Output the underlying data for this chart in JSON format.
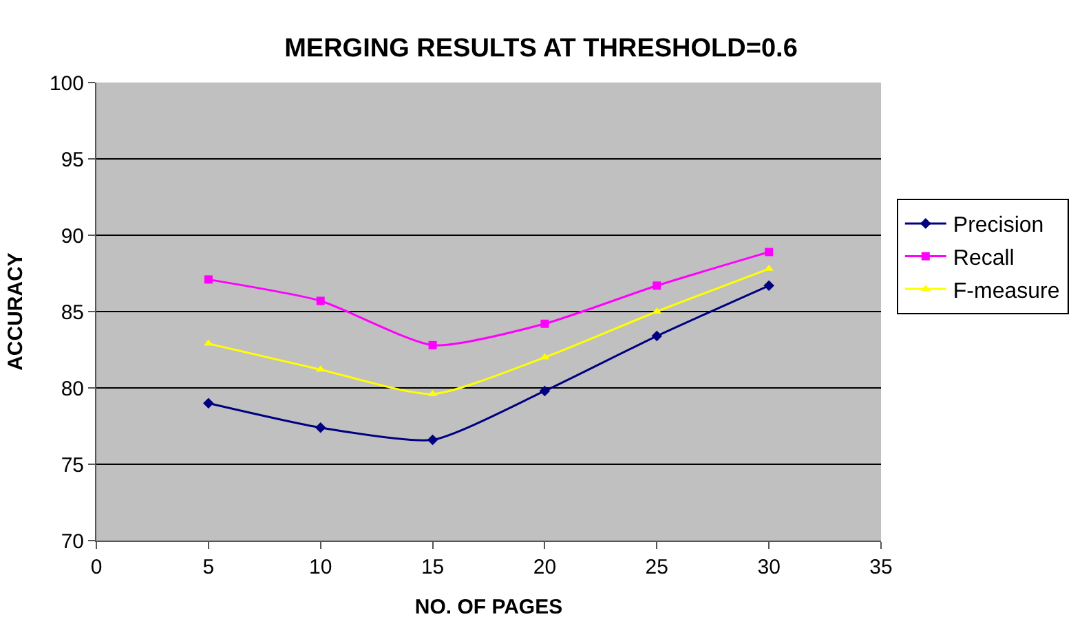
{
  "chart_data": {
    "type": "line",
    "title": "MERGING RESULTS AT THRESHOLD=0.6",
    "xlabel": "NO. OF PAGES",
    "ylabel": "ACCURACY",
    "x": [
      5,
      10,
      15,
      20,
      25,
      30
    ],
    "xlim": [
      0,
      35
    ],
    "xticks": [
      0,
      5,
      10,
      15,
      20,
      25,
      30,
      35
    ],
    "ylim": [
      70,
      100
    ],
    "yticks": [
      70,
      75,
      80,
      85,
      90,
      95,
      100
    ],
    "grid": "y",
    "legend": "right",
    "series": [
      {
        "name": "Precision",
        "color": "#000080",
        "marker": "diamond",
        "values": [
          79.0,
          77.4,
          76.6,
          79.8,
          83.4,
          86.7
        ]
      },
      {
        "name": "Recall",
        "color": "#ff00ff",
        "marker": "square",
        "values": [
          87.1,
          85.7,
          82.8,
          84.2,
          86.7,
          88.9
        ]
      },
      {
        "name": "F-measure",
        "color": "#ffff00",
        "marker": "triangle",
        "values": [
          82.9,
          81.2,
          79.6,
          82.0,
          85.0,
          87.8
        ]
      }
    ]
  }
}
